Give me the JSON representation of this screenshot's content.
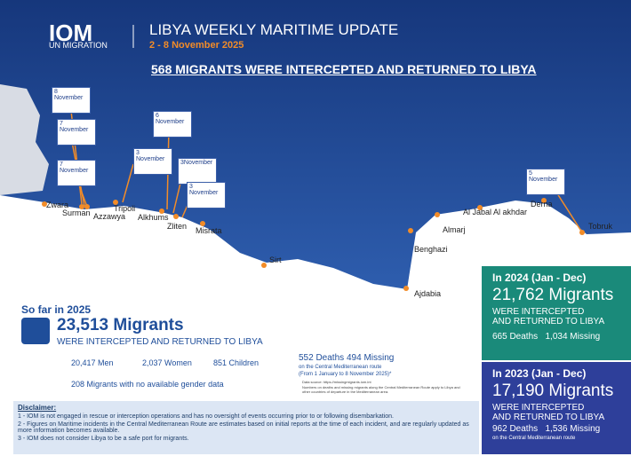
{
  "header": {
    "logo": "IOM",
    "logo_sub": "UN MIGRATION",
    "title": "LIBYA WEEKLY MARITIME UPDATE",
    "dates": "2 - 8 November 2025"
  },
  "headline": "568 MIGRANTS WERE INTERCEPTED AND RETURNED TO LIBYA",
  "callouts": [
    "8 November",
    "7 November",
    "7 November",
    "6 November",
    "3 November",
    "3November",
    "3 November",
    "5 November"
  ],
  "cities": [
    "Zwara",
    "Surman",
    "Azzawya",
    "Tripoli",
    "Alkhums",
    "Zliten",
    "Misrata",
    "Sirt",
    "Benghazi",
    "Ajdabia",
    "Almarj",
    "Al Jabal Al akhdar",
    "Derna",
    "Tobruk"
  ],
  "so_far": {
    "label": "So far in 2025",
    "total": "23,513 Migrants",
    "sub": "WERE INTERCEPTED AND RETURNED TO LIBYA",
    "men": "20,417 Men",
    "women": "2,037 Women",
    "children": "851 Children",
    "unknown": "208 Migrants with no available gender data"
  },
  "deaths": {
    "deaths": "552 Deaths",
    "missing": "494 Missing",
    "route": "on the Central Mediterranean route",
    "period": "(From 1 January to 8 November 2025)*",
    "note1": "Data source: https://missingmigrants.iom.int",
    "note2": "Numbers on deaths and missing migrants along the Central Mediterranean Route apply to Libya and other countries of departure in the Mediterranean area."
  },
  "y2024": {
    "label": "In 2024 (Jan - Dec)",
    "total": "21,762 Migrants",
    "sub1": "WERE INTERCEPTED",
    "sub2": "AND RETURNED TO LIBYA",
    "deaths": "665 Deaths",
    "missing": "1,034 Missing"
  },
  "y2023": {
    "label": "In 2023 (Jan - Dec)",
    "total": "17,190 Migrants",
    "sub1": "WERE INTERCEPTED",
    "sub2": "AND RETURNED TO LIBYA",
    "deaths": "962 Deaths",
    "missing": "1,536 Missing",
    "route": "on the Central Mediterranean route"
  },
  "disclaimer": {
    "title": "Disclaimer:",
    "items": [
      "1 - IOM is not engaged in rescue or interception operations and has no oversight of events occurring prior to or following disembarkation.",
      "2 - Figures on Maritime incidents in the Central Mediterranean Route are estimates based on initial reports at the time of each incident, and are regularly updated as more information becomes available.",
      "3 - IOM does not consider Libya to be a safe port for migrants."
    ]
  }
}
